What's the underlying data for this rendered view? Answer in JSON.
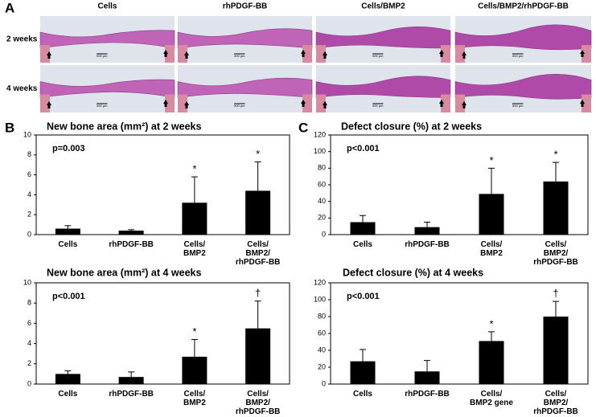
{
  "panel_a": {
    "label": "A",
    "columns": [
      "Cells",
      "rhPDGF-BB",
      "Cells/BMP2",
      "Cells/BMP2/rhPDGF-BB"
    ],
    "rows": [
      "2 weeks",
      "4 weeks"
    ],
    "scale_bar": "500 µm"
  },
  "panel_b": {
    "label": "B"
  },
  "panel_c": {
    "label": "C"
  },
  "chart_data": [
    {
      "type": "bar",
      "title": "New bone area (mm²)  at 2 weeks",
      "annotation": "p=0.003",
      "categories": [
        "Cells",
        "rhPDGF-BB",
        "Cells/\nBMP2",
        "Cells/\nBMP2/\nrhPDGF-BB"
      ],
      "values": [
        0.6,
        0.4,
        3.2,
        4.4
      ],
      "errors": [
        0.3,
        0.1,
        2.6,
        2.9
      ],
      "significance": [
        null,
        null,
        "*",
        "*"
      ],
      "color": "#000000",
      "ylim": [
        0,
        10
      ],
      "yticks": [
        0,
        2,
        4,
        6,
        8,
        10
      ]
    },
    {
      "type": "bar",
      "title": "New bone area (mm²) at 4 weeks",
      "annotation": "p<0.001",
      "categories": [
        "Cells",
        "rhPDGF-BB",
        "Cells/\nBMP2",
        "Cells/\nBMP2/\nrhPDGF-BB"
      ],
      "values": [
        1.0,
        0.7,
        2.7,
        5.5
      ],
      "errors": [
        0.3,
        0.5,
        1.7,
        2.7
      ],
      "significance": [
        null,
        null,
        "*",
        "†"
      ],
      "color": "#000000",
      "ylim": [
        0,
        10
      ],
      "yticks": [
        0,
        2,
        4,
        6,
        8,
        10
      ]
    },
    {
      "type": "bar",
      "title": "Defect closure (%) at 2 weeks",
      "annotation": "p<0.001",
      "categories": [
        "Cells",
        "rhPDGF-BB",
        "Cells/\nBMP2",
        "Cells/\nBMP2/\nrhPDGF-BB"
      ],
      "values": [
        15,
        9,
        49,
        64
      ],
      "errors": [
        8,
        6,
        31,
        23
      ],
      "significance": [
        null,
        null,
        "*",
        "*"
      ],
      "color": "#000000",
      "ylim": [
        0,
        120
      ],
      "yticks": [
        0,
        20,
        40,
        60,
        80,
        100,
        120
      ]
    },
    {
      "type": "bar",
      "title": "Defect closure (%) at 4 weeks",
      "annotation": "p<0.001",
      "categories": [
        "Cells",
        "rhPDGF-BB",
        "Cells/\nBMP2  gene",
        "Cells/\nBMP2/\nrhPDGF-BB"
      ],
      "values": [
        27,
        15,
        51,
        80
      ],
      "errors": [
        14,
        13,
        11,
        18
      ],
      "significance": [
        null,
        null,
        "*",
        "†"
      ],
      "color": "#000000",
      "ylim": [
        0,
        120
      ],
      "yticks": [
        0,
        20,
        40,
        60,
        80,
        100,
        120
      ]
    }
  ]
}
